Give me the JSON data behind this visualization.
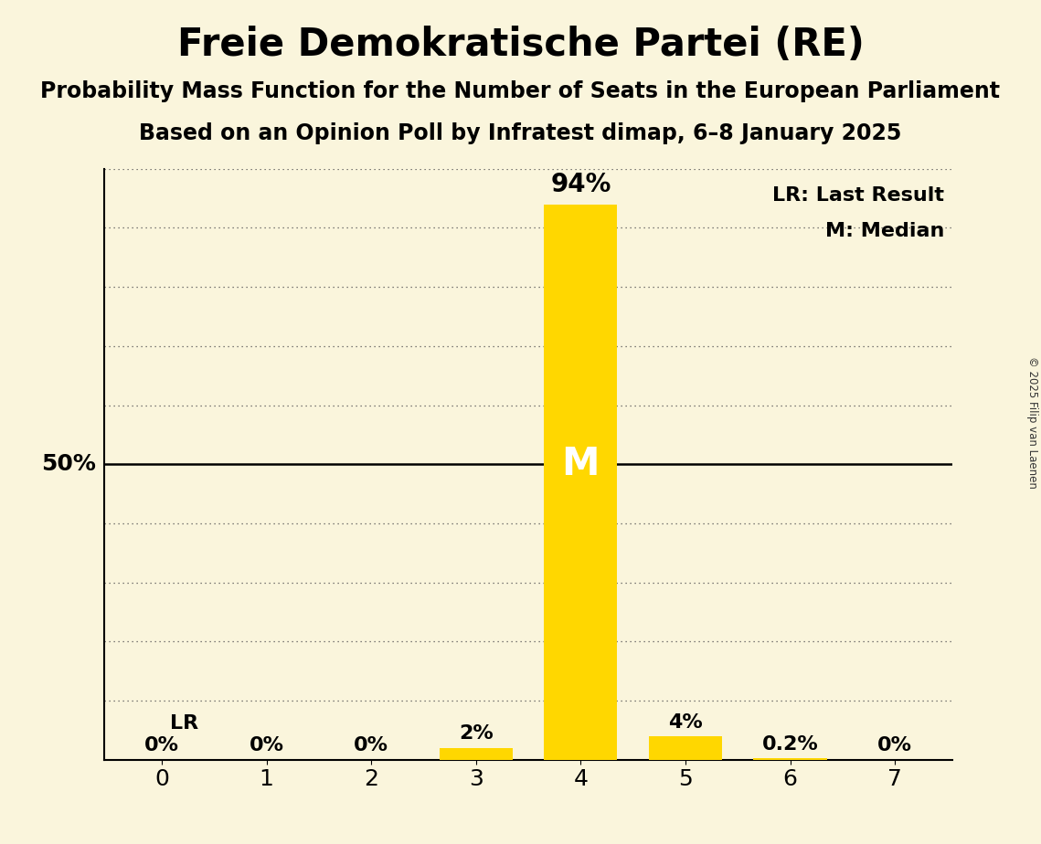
{
  "title": "Freie Demokratische Partei (RE)",
  "subtitle1": "Probability Mass Function for the Number of Seats in the European Parliament",
  "subtitle2": "Based on an Opinion Poll by Infratest dimap, 6–8 January 2025",
  "copyright": "© 2025 Filip van Laenen",
  "categories": [
    0,
    1,
    2,
    3,
    4,
    5,
    6,
    7
  ],
  "values": [
    0.0,
    0.0,
    0.0,
    2.0,
    94.0,
    4.0,
    0.2,
    0.0
  ],
  "bar_color": "#FFD700",
  "background_color": "#FAF5DC",
  "bar_labels": [
    "0%",
    "0%",
    "0%",
    "2%",
    "94%",
    "4%",
    "0.2%",
    "0%"
  ],
  "median_seat": 4,
  "lr_seat": 0,
  "ylim": [
    0,
    100
  ],
  "legend_lr": "LR: Last Result",
  "legend_m": "M: Median",
  "title_fontsize": 30,
  "subtitle_fontsize": 17,
  "label_fontsize": 16,
  "tick_fontsize": 18,
  "bar_width": 0.7
}
